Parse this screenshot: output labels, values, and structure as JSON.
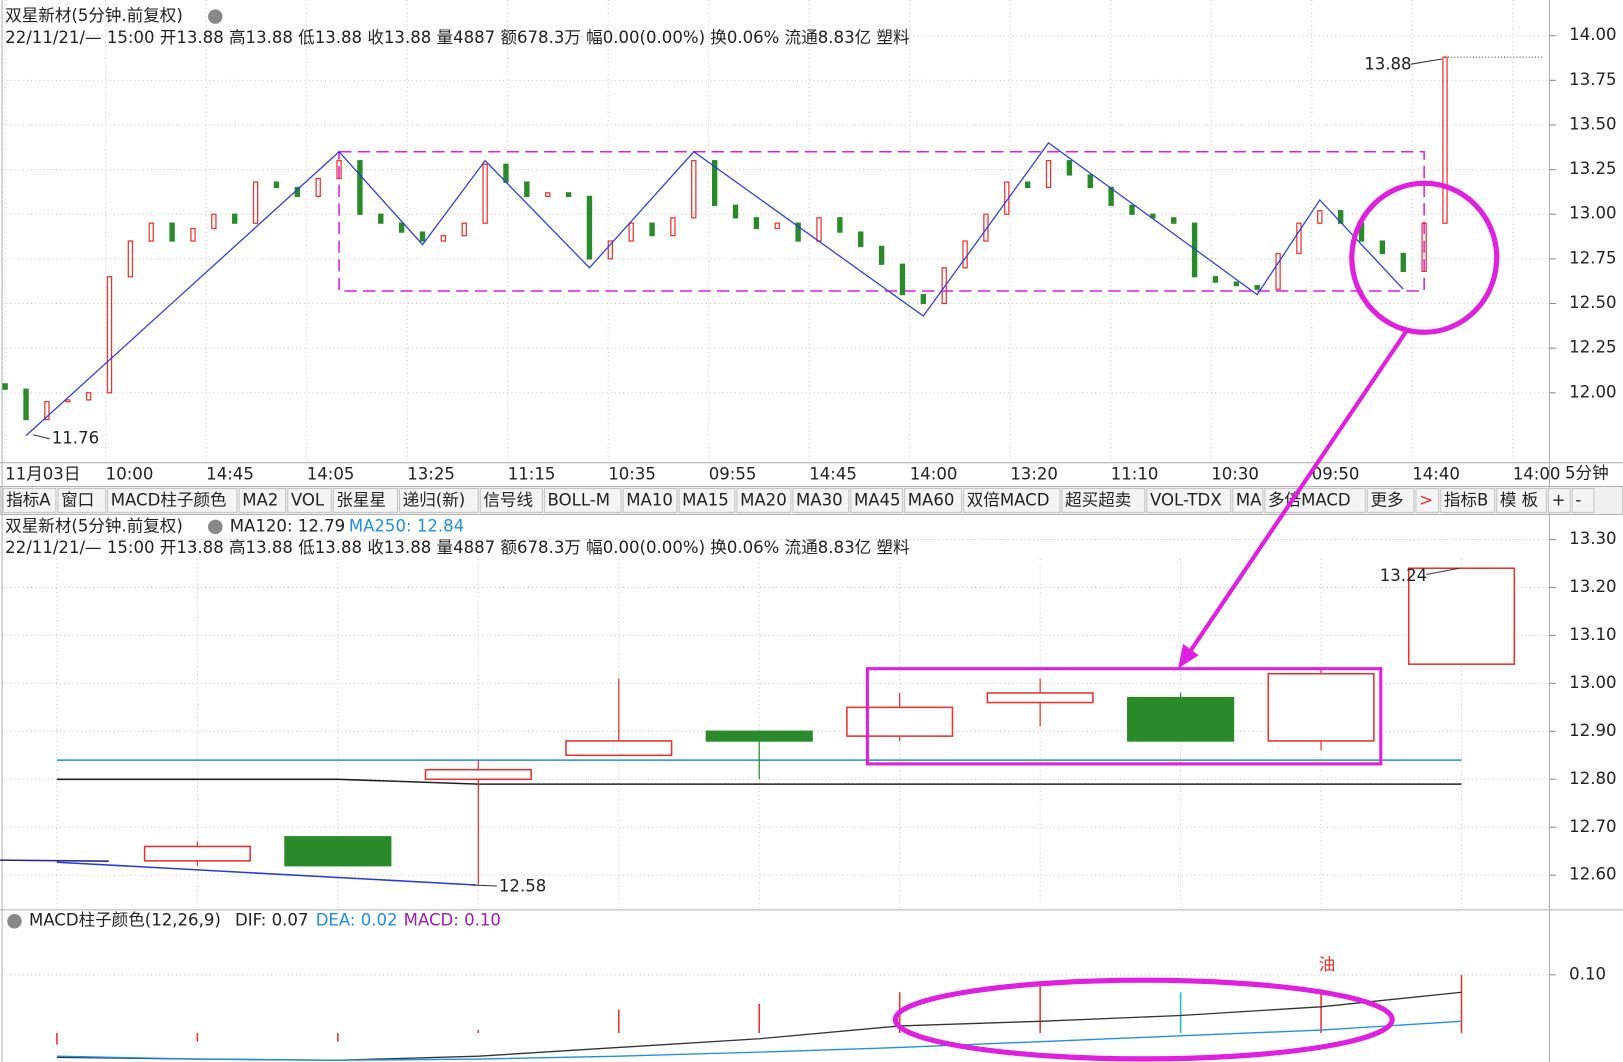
{
  "toolbar": [
    "指标A",
    "窗口",
    "MACD柱子颜色",
    "MA2",
    "VOL",
    "张星星",
    "递归(新)",
    "信号线",
    "BOLL-M",
    "MA10",
    "MA15",
    "MA20",
    "MA30",
    "MA45",
    "MA60",
    "双倍MACD",
    "超买超卖",
    "VOL-TDX",
    "MA",
    "多倍MACD",
    "更多",
    ">",
    "指标B",
    "模 板",
    "+",
    "-"
  ],
  "chart_data": [
    {
      "type": "candlestick",
      "title": "双星新材(5分钟.前复权)",
      "info": "22/11/21/— 15:00 开13.88 高13.88 低13.88 收13.88 量4887 额678.3万 幅0.00(0.00%) 换0.06% 流通8.83亿 塑料",
      "period": "5分钟",
      "x_tick_labels": [
        "11月03日",
        "10:00",
        "14:45",
        "14:05",
        "13:25",
        "11:15",
        "10:35",
        "09:55",
        "14:45",
        "14:00",
        "13:20",
        "11:10",
        "10:30",
        "09:50",
        "14:40",
        "14:00"
      ],
      "open": [
        12.05,
        12.02,
        11.85,
        11.95,
        11.96,
        12.0,
        12.65,
        12.85,
        12.95,
        12.85,
        12.92,
        13.0,
        12.95,
        13.18,
        13.15,
        13.1,
        13.2,
        13.3,
        13.0,
        12.95,
        12.9,
        12.85,
        12.88,
        12.95,
        13.28,
        13.18,
        13.1,
        13.12,
        13.1,
        12.75,
        12.85,
        12.95,
        12.88,
        12.98,
        13.3,
        13.05,
        12.98,
        12.92,
        12.95,
        12.85,
        12.98,
        12.9,
        12.82,
        12.72,
        12.55,
        12.5,
        12.7,
        12.85,
        13.0,
        13.18,
        13.15,
        13.3,
        13.22,
        13.15,
        13.05,
        13.0,
        12.98,
        12.95,
        12.65,
        12.62,
        12.6,
        12.58,
        12.78,
        12.95,
        13.02,
        12.95,
        12.85,
        12.78,
        12.68,
        12.95
      ],
      "close": [
        12.02,
        11.85,
        11.95,
        11.96,
        12.0,
        12.65,
        12.85,
        12.95,
        12.85,
        12.92,
        13.0,
        12.95,
        13.18,
        13.15,
        13.1,
        13.2,
        13.3,
        13.0,
        12.95,
        12.9,
        12.85,
        12.88,
        12.95,
        13.28,
        13.18,
        13.1,
        13.12,
        13.1,
        12.75,
        12.85,
        12.95,
        12.88,
        12.98,
        13.3,
        13.05,
        12.98,
        12.92,
        12.95,
        12.85,
        12.98,
        12.9,
        12.82,
        12.72,
        12.55,
        12.5,
        12.7,
        12.85,
        13.0,
        13.18,
        13.15,
        13.3,
        13.22,
        13.15,
        13.05,
        13.0,
        12.98,
        12.95,
        12.65,
        12.62,
        12.6,
        12.58,
        12.78,
        12.95,
        13.02,
        12.95,
        12.85,
        12.78,
        12.68,
        12.95,
        13.88
      ],
      "up_color": "#e8322f",
      "down_color": "#2a8a2a",
      "ylim": [
        11.62,
        14.2
      ],
      "yticks": [
        {
          "value": 12,
          "label": "12.00"
        },
        {
          "value": 12.25,
          "label": "12.25"
        },
        {
          "value": 12.5,
          "label": "12.50"
        },
        {
          "value": 12.75,
          "label": "12.75"
        },
        {
          "value": 13,
          "label": "13.00"
        },
        {
          "value": 13.25,
          "label": "13.25"
        },
        {
          "value": 13.5,
          "label": "13.50"
        },
        {
          "value": 13.75,
          "label": "13.75"
        },
        {
          "value": 14,
          "label": "14.00"
        }
      ],
      "grid": true,
      "annotations": [
        {
          "text": "13.88"
        },
        {
          "text": "11.76"
        }
      ],
      "zigzag": {
        "color": "#2b3bd8",
        "x": [
          1,
          16,
          20,
          23,
          28,
          33,
          44,
          50,
          60,
          63,
          67
        ],
        "values": [
          11.76,
          13.35,
          12.83,
          13.3,
          12.7,
          13.35,
          12.43,
          13.4,
          12.55,
          13.08,
          12.58
        ]
      },
      "range_box": {
        "color": "#e020e0",
        "x": [
          16,
          68
        ],
        "values": [
          12.57,
          13.35
        ]
      }
    },
    {
      "type": "candlestick",
      "title": "双星新材(5分钟.前复权)",
      "info": "22/11/21/— 15:00 开13.88 高13.88 低13.88 收13.88 量4887 额678.3万 幅0.00(0.00%) 换0.06% 流通8.83亿 塑料",
      "open": [
        null,
        12.63,
        12.68,
        12.8,
        12.85,
        12.9,
        12.89,
        12.96,
        12.97,
        12.88,
        13.04
      ],
      "high": [
        null,
        12.67,
        12.68,
        12.84,
        13.01,
        12.9,
        12.98,
        13.01,
        12.98,
        13.03,
        13.24
      ],
      "low": [
        null,
        12.62,
        12.62,
        12.58,
        12.85,
        12.8,
        12.88,
        12.91,
        12.88,
        12.86,
        13.04
      ],
      "close": [
        null,
        12.66,
        12.62,
        12.82,
        12.88,
        12.88,
        12.95,
        12.98,
        12.88,
        13.02,
        13.24
      ],
      "up_color": "#e8322f",
      "down_color": "#2a8a2a",
      "series": [
        {
          "name": "MA120: 12.79",
          "color": "#222222",
          "values": [
            12.8,
            12.8,
            12.8,
            12.79,
            12.79,
            12.79,
            12.79,
            12.79,
            12.79,
            12.79,
            12.79
          ]
        },
        {
          "name": "MA250: 12.84",
          "color": "#1f8fe0",
          "values": [
            12.84,
            12.84,
            12.84,
            12.84,
            12.84,
            12.84,
            12.84,
            12.84,
            12.84,
            12.84,
            12.84
          ]
        }
      ],
      "ylim": [
        12.53,
        13.35
      ],
      "yticks": [
        {
          "value": 12.6,
          "label": "12.60"
        },
        {
          "value": 12.7,
          "label": "12.70"
        },
        {
          "value": 12.8,
          "label": "12.80"
        },
        {
          "value": 12.9,
          "label": "12.90"
        },
        {
          "value": 13,
          "label": "13.00"
        },
        {
          "value": 13.1,
          "label": "13.10"
        },
        {
          "value": 13.2,
          "label": "13.20"
        },
        {
          "value": 13.3,
          "label": "13.30"
        }
      ],
      "grid": true,
      "annotations": [
        {
          "text": "13.24"
        },
        {
          "text": "12.58"
        }
      ]
    },
    {
      "type": "macd",
      "title": "MACD柱子颜色(12,26,9)",
      "series": [
        {
          "name": "DIF: 0.07",
          "color": "#333333",
          "values": [
            -0.042,
            -0.045,
            -0.047,
            -0.04,
            -0.025,
            -0.01,
            0.012,
            0.02,
            0.03,
            0.045,
            0.07
          ]
        },
        {
          "name": "DEA: 0.02",
          "color": "#1f8fe0",
          "values": [
            -0.04,
            -0.045,
            -0.047,
            -0.045,
            -0.04,
            -0.033,
            -0.025,
            -0.015,
            -0.005,
            0.005,
            0.02
          ]
        },
        {
          "name": "MACD: 0.10",
          "color": "#9b1fa8",
          "values": [
            -0.02,
            -0.015,
            -0.015,
            0.005,
            0.04,
            0.05,
            0.07,
            0.08,
            0.07,
            0.075,
            0.1
          ],
          "colors": [
            "#e8322f",
            "#e8322f",
            "#e8322f",
            "#e8322f",
            "#e8322f",
            "#e8322f",
            "#e8322f",
            "#e8322f",
            "#18c0c8",
            "#e8322f",
            "#e8322f"
          ]
        }
      ],
      "ylim": [
        -0.05,
        0.21
      ],
      "yticks": [
        {
          "value": 0.1,
          "label": "0.10"
        }
      ],
      "grid": true,
      "annotations": [
        {
          "text": "油"
        }
      ]
    }
  ]
}
